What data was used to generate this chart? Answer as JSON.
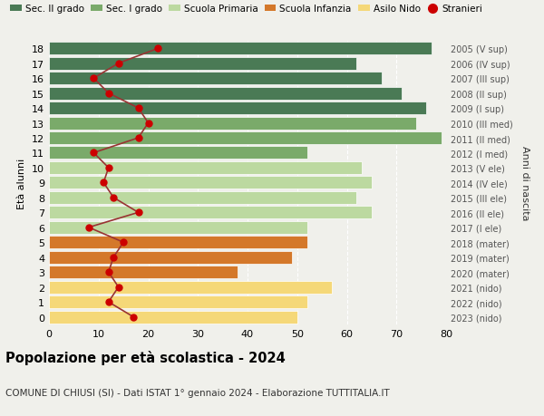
{
  "ages": [
    18,
    17,
    16,
    15,
    14,
    13,
    12,
    11,
    10,
    9,
    8,
    7,
    6,
    5,
    4,
    3,
    2,
    1,
    0
  ],
  "anni_nascita": [
    "2005 (V sup)",
    "2006 (IV sup)",
    "2007 (III sup)",
    "2008 (II sup)",
    "2009 (I sup)",
    "2010 (III med)",
    "2011 (II med)",
    "2012 (I med)",
    "2013 (V ele)",
    "2014 (IV ele)",
    "2015 (III ele)",
    "2016 (II ele)",
    "2017 (I ele)",
    "2018 (mater)",
    "2019 (mater)",
    "2020 (mater)",
    "2021 (nido)",
    "2022 (nido)",
    "2023 (nido)"
  ],
  "bar_values": [
    77,
    62,
    67,
    71,
    76,
    74,
    79,
    52,
    63,
    65,
    62,
    65,
    52,
    52,
    49,
    38,
    57,
    52,
    50
  ],
  "bar_colors": [
    "#4a7a55",
    "#4a7a55",
    "#4a7a55",
    "#4a7a55",
    "#4a7a55",
    "#7aaa6a",
    "#7aaa6a",
    "#7aaa6a",
    "#bcd9a0",
    "#bcd9a0",
    "#bcd9a0",
    "#bcd9a0",
    "#bcd9a0",
    "#d4782a",
    "#d4782a",
    "#d4782a",
    "#f5d878",
    "#f5d878",
    "#f5d878"
  ],
  "stranieri_values": [
    22,
    14,
    9,
    12,
    18,
    20,
    18,
    9,
    12,
    11,
    13,
    18,
    8,
    15,
    13,
    12,
    14,
    12,
    17
  ],
  "legend_labels": [
    "Sec. II grado",
    "Sec. I grado",
    "Scuola Primaria",
    "Scuola Infanzia",
    "Asilo Nido",
    "Stranieri"
  ],
  "legend_colors_patch": [
    "#4a7a55",
    "#7aaa6a",
    "#bcd9a0",
    "#d4782a",
    "#f5d878"
  ],
  "stranieri_dot_color": "#cc0000",
  "stranieri_line_color": "#993333",
  "ylabel_left": "Età alunni",
  "ylabel_right": "Anni di nascita",
  "xlim": [
    0,
    80
  ],
  "xticks": [
    0,
    10,
    20,
    30,
    40,
    50,
    60,
    70,
    80
  ],
  "title": "Popolazione per età scolastica - 2024",
  "subtitle": "COMUNE DI CHIUSI (SI) - Dati ISTAT 1° gennaio 2024 - Elaborazione TUTTITALIA.IT",
  "bg_color": "#f0f0eb"
}
